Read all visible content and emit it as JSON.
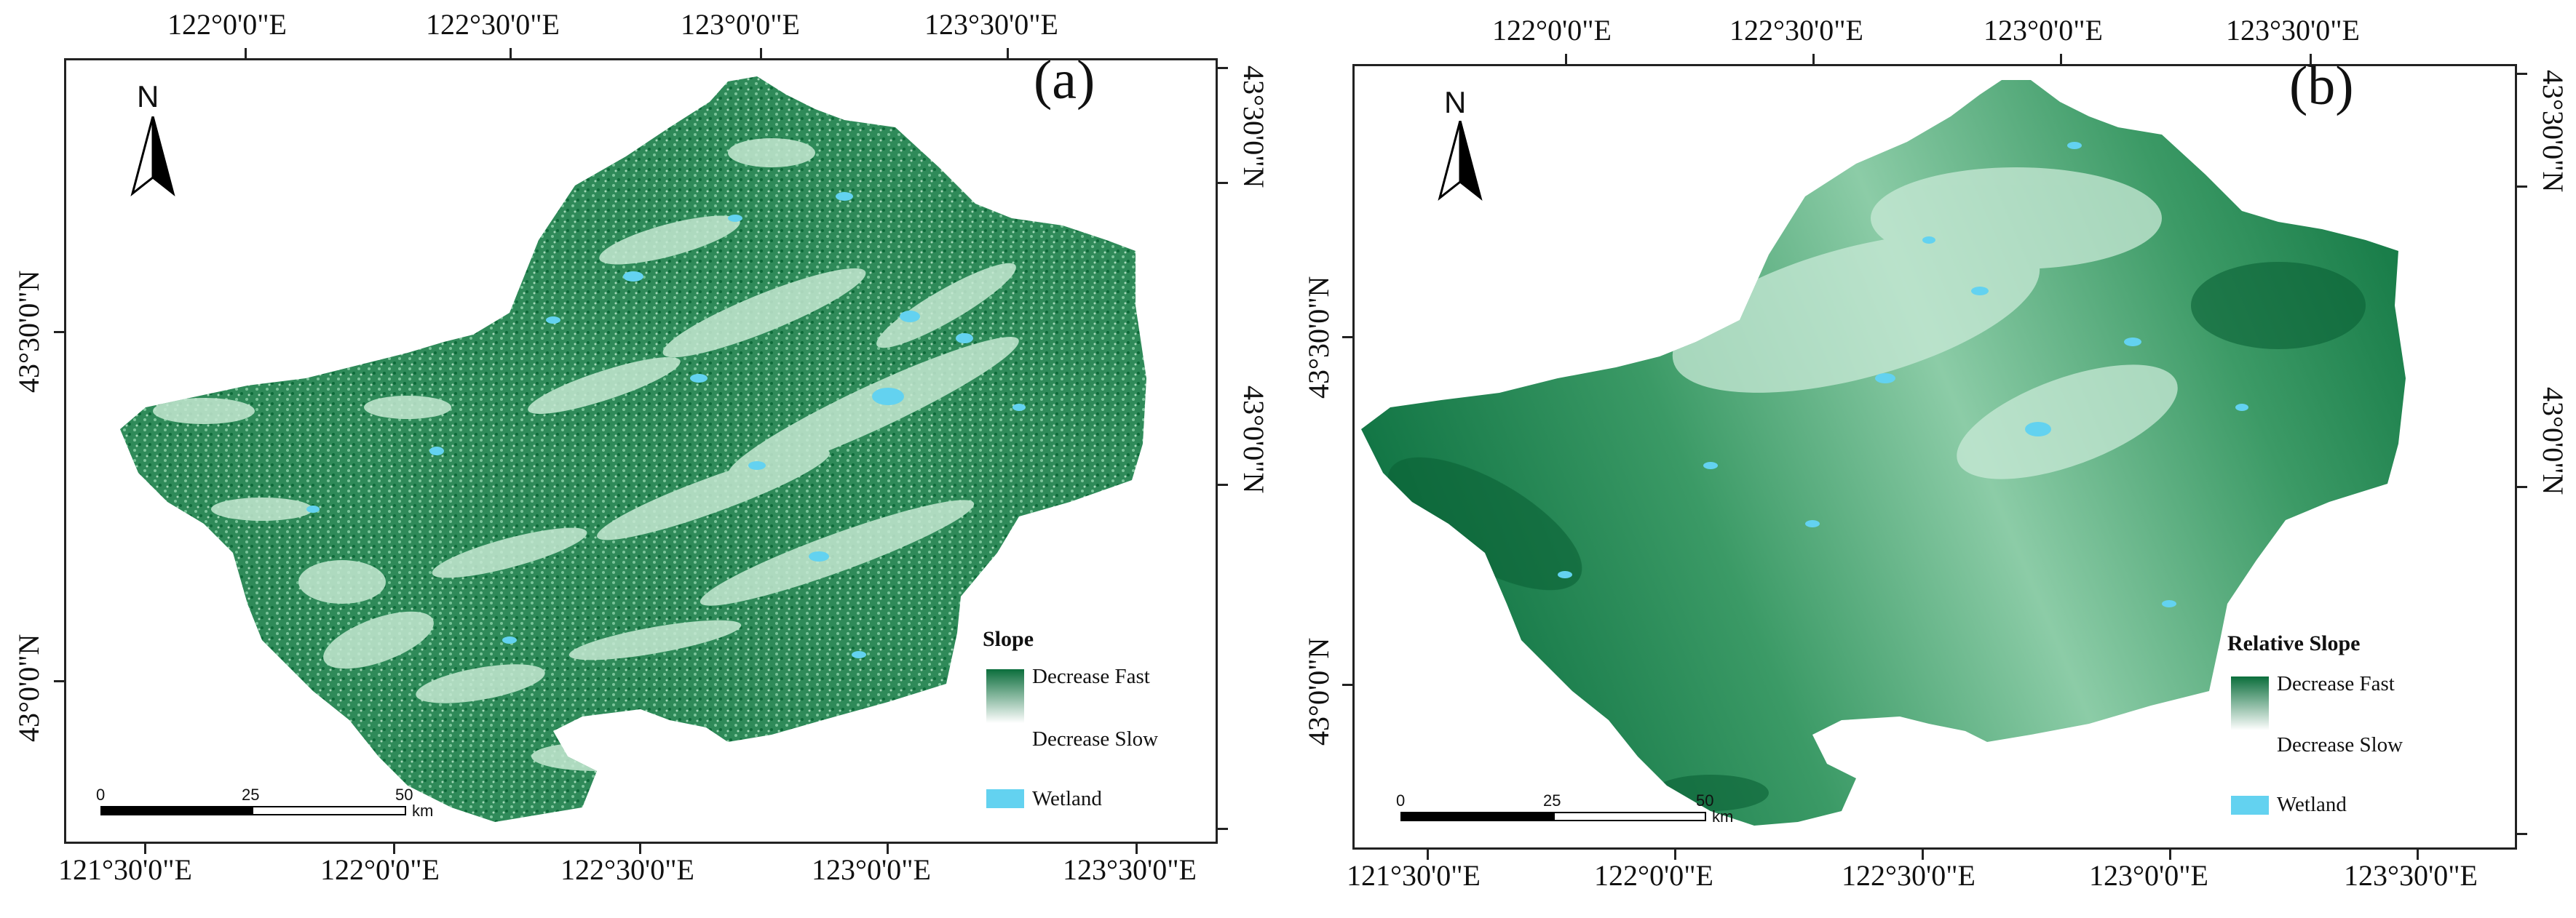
{
  "panels": [
    {
      "letter": "(a)",
      "top_lon_labels": [
        "122°0'0\"E",
        "122°30'0\"E",
        "123°0'0\"E",
        "123°30'0\"E"
      ],
      "bottom_lon_labels": [
        "121°30'0\"E",
        "122°0'0\"E",
        "122°30'0\"E",
        "123°0'0\"E",
        "123°30'0\"E"
      ],
      "left_lat_labels": [
        "43°30'0\"N",
        "43°0'0\"N"
      ],
      "right_lat_labels": [
        "43°30'0\"N",
        "43°0'0\"N"
      ],
      "north": "N",
      "legend": {
        "title": "Slope",
        "high": "Decrease Fast",
        "low": "Decrease Slow",
        "wetland": "Wetland"
      },
      "scale": {
        "ticks": [
          "0",
          "25",
          "50"
        ],
        "unit": "km"
      }
    },
    {
      "letter": "(b)",
      "top_lon_labels": [
        "122°0'0\"E",
        "122°30'0\"E",
        "123°0'0\"E",
        "123°30'0\"E"
      ],
      "bottom_lon_labels": [
        "121°30'0\"E",
        "122°0'0\"E",
        "122°30'0\"E",
        "123°0'0\"E",
        "123°30'0\"E"
      ],
      "left_lat_labels": [
        "43°30'0\"N",
        "43°0'0\"N"
      ],
      "right_lat_labels": [
        "43°30'0\"N",
        "43°0'0\"N"
      ],
      "north": "N",
      "legend": {
        "title": "Relative Slope",
        "high": "Decrease Fast",
        "low": "Decrease Slow",
        "wetland": "Wetland"
      },
      "scale": {
        "ticks": [
          "0",
          "25",
          "50"
        ],
        "unit": "km"
      }
    }
  ],
  "colors": {
    "dark_green": "#0b6e3c",
    "mid_green": "#3e9b68",
    "light_green": "#bfe6cf",
    "wetland": "#63d2f0"
  }
}
